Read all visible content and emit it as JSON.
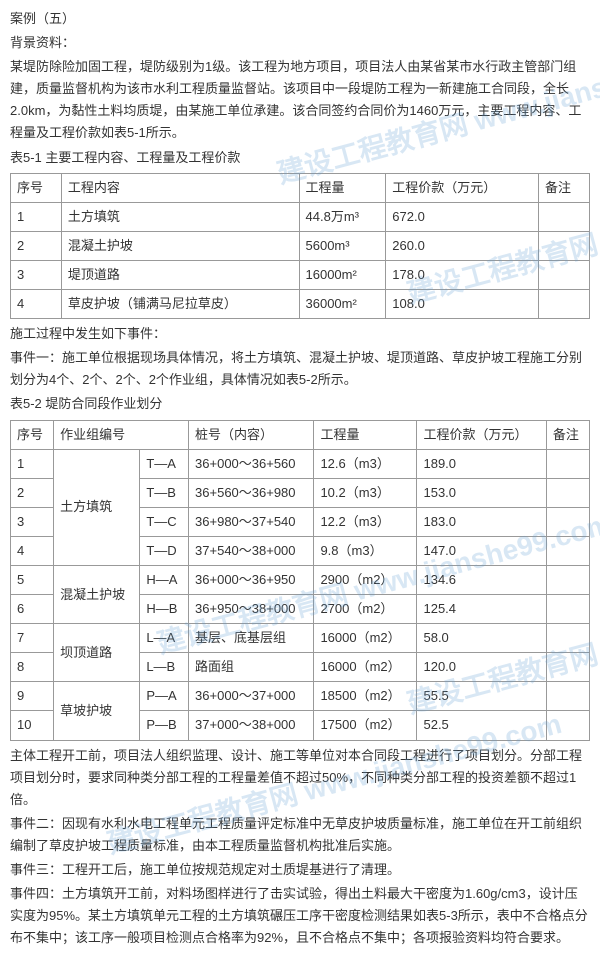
{
  "title": "案例（五）",
  "bg_label": "背景资料：",
  "bg_text": "某堤防除险加固工程，堤防级别为1级。该工程为地方项目，项目法人由某省某市水行政主管部门组建，质量监督机构为该市水利工程质量监督站。该项目中一段堤防工程为一新建施工合同段，全长2.0km，为黏性土料均质堤，由某施工单位承建。该合同签约合同价为1460万元，主要工程内容、工程量及工程价款如表5-1所示。",
  "table1_caption": "表5-1 主要工程内容、工程量及工程价款",
  "table1": {
    "headers": [
      "序号",
      "工程内容",
      "工程量",
      "工程价款（万元）",
      "备注"
    ],
    "rows": [
      [
        "1",
        "土方填筑",
        "44.8万m³",
        "672.0",
        ""
      ],
      [
        "2",
        "混凝土护坡",
        "5600m³",
        "260.0",
        ""
      ],
      [
        "3",
        "堤顶道路",
        "16000m²",
        "178.0",
        ""
      ],
      [
        "4",
        "草皮护坡（铺满马尼拉草皮）",
        "36000m²",
        "108.0",
        ""
      ]
    ]
  },
  "events_intro": "施工过程中发生如下事件：",
  "event1": "事件一：施工单位根据现场具体情况，将土方填筑、混凝土护坡、堤顶道路、草皮护坡工程施工分别划分为4个、2个、2个、2个作业组，具体情况如表5-2所示。",
  "table2_caption": "表5-2 堤防合同段作业划分",
  "table2": {
    "headers": [
      "序号",
      "作业组编号",
      "",
      "桩号（内容）",
      "工程量",
      "工程价款（万元）",
      "备注"
    ],
    "rows": [
      {
        "seq": "1",
        "group": "土方填筑",
        "rowspan": 4,
        "code": "T—A",
        "pile": "36+000～36+560",
        "qty": "12.6（m3）",
        "price": "189.0",
        "note": ""
      },
      {
        "seq": "2",
        "code": "T—B",
        "pile": "36+560～36+980",
        "qty": "10.2（m3）",
        "price": "153.0",
        "note": ""
      },
      {
        "seq": "3",
        "code": "T—C",
        "pile": "36+980～37+540",
        "qty": "12.2（m3）",
        "price": "183.0",
        "note": ""
      },
      {
        "seq": "4",
        "code": "T—D",
        "pile": "37+540～38+000",
        "qty": "9.8（m3）",
        "price": "147.0",
        "note": ""
      },
      {
        "seq": "5",
        "group": "混凝土护坡",
        "rowspan": 2,
        "code": "H—A",
        "pile": "36+000～36+950",
        "qty": "2900（m2）",
        "price": "134.6",
        "note": ""
      },
      {
        "seq": "6",
        "code": "H—B",
        "pile": "36+950～38+000",
        "qty": "2700（m2）",
        "price": "125.4",
        "note": ""
      },
      {
        "seq": "7",
        "group": "坝顶道路",
        "rowspan": 2,
        "code": "L—A",
        "pile": "基层、底基层组",
        "qty": "16000（m2）",
        "price": "58.0",
        "note": ""
      },
      {
        "seq": "8",
        "code": "L—B",
        "pile": "路面组",
        "qty": "16000（m2）",
        "price": "120.0",
        "note": ""
      },
      {
        "seq": "9",
        "group": "草坡护坡",
        "rowspan": 2,
        "code": "P—A",
        "pile": "36+000～37+000",
        "qty": "18500（m2）",
        "price": "55.5",
        "note": ""
      },
      {
        "seq": "10",
        "code": "P—B",
        "pile": "37+000～38+000",
        "qty": "17500（m2）",
        "price": "52.5",
        "note": ""
      }
    ]
  },
  "after_table2": "主体工程开工前，项目法人组织监理、设计、施工等单位对本合同段工程进行了项目划分。分部工程项目划分时，要求同种类分部工程的工程量差值不超过50%，不同种类分部工程的投资差额不超过1倍。",
  "event2": "事件二：因现有水利水电工程单元工程质量评定标准中无草皮护坡质量标准，施工单位在开工前组织编制了草皮护坡工程质量标准，由本工程质量监督机构批准后实施。",
  "event3": "事件三：工程开工后，施工单位按规范规定对土质堤基进行了清理。",
  "event4": "事件四：土方填筑开工前，对料场图样进行了击实试验，得出土料最大干密度为1.60g/cm3，设计压实度为95%。某土方填筑单元工程的土方填筑碾压工序干密度检测结果如表5-3所示，表中不合格点分布不集中；该工序一般项目检测点合格率为92%，且不合格点不集中；各项报验资料均符合要求。",
  "watermark": "建设工程教育网 www.jianshe99.com",
  "colors": {
    "text": "#333333",
    "border": "#999999",
    "watermark": "rgba(100,160,210,0.25)",
    "background": "#ffffff"
  },
  "typography": {
    "body_fontsize": 13,
    "line_height": 1.7
  }
}
